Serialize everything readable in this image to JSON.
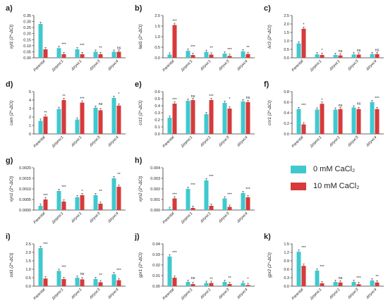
{
  "legend": [
    {
      "label": "0 mM CaCl₂",
      "color": "#3FC9CF"
    },
    {
      "label": "10 mM CaCl₂",
      "color": "#D63A3A"
    }
  ],
  "colors": {
    "control": "#3FC9CF",
    "treated": "#D63A3A"
  },
  "chart_data": [
    {
      "panel_label": "a)",
      "type": "bar",
      "ylabel": "xyl1 (2^-ΔCt)",
      "categories": [
        "Parental",
        "Δtrpmc1",
        "Δtryvc1",
        "Δtryvc3",
        "Δtryvc4"
      ],
      "ylim": [
        0,
        0.35
      ],
      "yticks": [
        "0.00",
        "0.05",
        "0.10",
        "0.15",
        "0.20",
        "0.25",
        "0.30",
        "0.35"
      ],
      "series": [
        {
          "name": "0 mM CaCl₂",
          "values": [
            0.28,
            0.08,
            0.07,
            0.05,
            0.05
          ]
        },
        {
          "name": "10 mM CaCl₂",
          "values": [
            0.07,
            0.03,
            0.03,
            0.03,
            0.05
          ]
        }
      ],
      "annotations": [
        "",
        "***",
        "***",
        "**",
        "ns"
      ]
    },
    {
      "panel_label": "b)",
      "type": "bar",
      "ylabel": "lad1 (2^-ΔCt)",
      "categories": [
        "Parental",
        "Δtrpmc1",
        "Δtryvc1",
        "Δtryvc3",
        "Δtryvc4"
      ],
      "ylim": [
        0,
        2.0
      ],
      "yticks": [
        "0.0",
        "0.5",
        "1.0",
        "1.5",
        "2.0"
      ],
      "series": [
        {
          "name": "0 mM CaCl₂",
          "values": [
            0.15,
            0.33,
            0.28,
            0.2,
            0.3
          ]
        },
        {
          "name": "10 mM CaCl₂",
          "values": [
            1.55,
            0.13,
            0.15,
            0.09,
            0.18
          ]
        }
      ],
      "annotations": [
        "***",
        "***",
        "**",
        "***",
        "**"
      ]
    },
    {
      "panel_label": "c)",
      "type": "bar",
      "ylabel": "lxr3 (2^-ΔCt)",
      "categories": [
        "Parental",
        "Δtrpmc1",
        "Δtryvc1",
        "Δtryvc3",
        "Δtryvc4"
      ],
      "ylim": [
        0,
        2.5
      ],
      "yticks": [
        "0.0",
        "0.5",
        "1.0",
        "1.5",
        "2.0",
        "2.5"
      ],
      "series": [
        {
          "name": "0 mM CaCl₂",
          "values": [
            0.85,
            0.2,
            0.17,
            0.2,
            0.22
          ]
        },
        {
          "name": "10 mM CaCl₂",
          "values": [
            1.72,
            0.17,
            0.14,
            0.19,
            0.22
          ]
        }
      ],
      "annotations": [
        "*",
        "*",
        "ns",
        "ns",
        "ns"
      ]
    },
    {
      "panel_label": "d)",
      "type": "bar",
      "ylabel": "cam (2^-ΔCt)",
      "categories": [
        "Parental",
        "Δtrpmc1",
        "Δtryvc1",
        "Δtryvc3",
        "Δtryvc4"
      ],
      "ylim": [
        0,
        5
      ],
      "yticks": [
        "0",
        "1",
        "2",
        "3",
        "4",
        "5"
      ],
      "series": [
        {
          "name": "0 mM CaCl₂",
          "values": [
            1.55,
            2.95,
            1.7,
            3.1,
            4.25
          ]
        },
        {
          "name": "10 mM CaCl₂",
          "values": [
            2.05,
            4.0,
            3.7,
            2.8,
            3.35
          ]
        }
      ],
      "annotations": [
        "**",
        "**",
        "***",
        "ns",
        "*"
      ]
    },
    {
      "panel_label": "e)",
      "type": "bar",
      "ylabel": "crz1 (2^-ΔCt)",
      "categories": [
        "Parental",
        "Δtrpmc1",
        "Δtryvc1",
        "Δtryvc3",
        "Δtryvc4"
      ],
      "ylim": [
        0,
        0.6
      ],
      "yticks": [
        "0.0",
        "0.1",
        "0.2",
        "0.3",
        "0.4",
        "0.5",
        "0.6"
      ],
      "series": [
        {
          "name": "0 mM CaCl₂",
          "values": [
            0.23,
            0.47,
            0.28,
            0.44,
            0.46
          ]
        },
        {
          "name": "10 mM CaCl₂",
          "values": [
            0.43,
            0.48,
            0.48,
            0.36,
            0.45
          ]
        }
      ],
      "annotations": [
        "***",
        "ns",
        "***",
        "*",
        "ns"
      ]
    },
    {
      "panel_label": "f)",
      "type": "bar",
      "ylabel": "cnr1 (2^-ΔCt)",
      "categories": [
        "Parental",
        "Δtrpmc1",
        "Δtryvc1",
        "Δtryvc3",
        "Δtryvc4"
      ],
      "ylim": [
        0,
        0.8
      ],
      "yticks": [
        "0.0",
        "0.2",
        "0.4",
        "0.6",
        "0.8"
      ],
      "series": [
        {
          "name": "0 mM CaCl₂",
          "values": [
            0.47,
            0.46,
            0.46,
            0.5,
            0.6
          ]
        },
        {
          "name": "10 mM CaCl₂",
          "values": [
            0.18,
            0.57,
            0.47,
            0.47,
            0.47
          ]
        }
      ],
      "annotations": [
        "***",
        "*",
        "ns",
        "ns",
        "***"
      ]
    },
    {
      "panel_label": "g)",
      "type": "bar",
      "ylabel": "xyn1 (2^-ΔCt)",
      "categories": [
        "Parental",
        "Δtrpmc1",
        "Δtryvc1",
        "Δtryvc3",
        "Δtryvc4"
      ],
      "ylim": [
        0,
        0.002
      ],
      "yticks": [
        "0.0000",
        "0.0005",
        "0.0010",
        "0.0015",
        "0.0020"
      ],
      "series": [
        {
          "name": "0 mM CaCl₂",
          "values": [
            0.0002,
            0.0009,
            0.0006,
            0.0007,
            0.0015
          ]
        },
        {
          "name": "10 mM CaCl₂",
          "values": [
            0.0005,
            0.0004,
            0.0007,
            0.0003,
            0.0011
          ]
        }
      ],
      "annotations": [
        "***",
        "***",
        "*",
        "**",
        "**"
      ]
    },
    {
      "panel_label": "h)",
      "type": "bar",
      "ylabel": "xyn2 (2^-ΔCt)",
      "categories": [
        "Parental",
        "Δtrpmc1",
        "Δtryvc1",
        "Δtryvc3",
        "Δtryvc4"
      ],
      "ylim": [
        0,
        0.004
      ],
      "yticks": [
        "0.000",
        "0.001",
        "0.002",
        "0.003",
        "0.004"
      ],
      "series": [
        {
          "name": "0 mM CaCl₂",
          "values": [
            0.0001,
            0.002,
            0.0028,
            0.0011,
            0.0016
          ]
        },
        {
          "name": "10 mM CaCl₂",
          "values": [
            0.0011,
            0.0002,
            0.0004,
            0.0003,
            0.0012
          ]
        }
      ],
      "annotations": [
        "***",
        "***",
        "***",
        "***",
        "***"
      ]
    },
    {
      "panel_label": "i)",
      "type": "bar",
      "ylabel": "sol1 (2^-ΔCt)",
      "categories": [
        "Parental",
        "Δtrpmc1",
        "Δtryvc1",
        "Δtryvc3",
        "Δtryvc4"
      ],
      "ylim": [
        0,
        2.5
      ],
      "yticks": [
        "0.0",
        "0.5",
        "1.0",
        "1.5",
        "2.0",
        "2.5"
      ],
      "series": [
        {
          "name": "0 mM CaCl₂",
          "values": [
            2.25,
            0.9,
            0.5,
            0.42,
            0.7
          ]
        },
        {
          "name": "10 mM CaCl₂",
          "values": [
            0.45,
            0.42,
            0.4,
            0.23,
            0.35
          ]
        }
      ],
      "annotations": [
        "***",
        "***",
        "ns",
        "**",
        "***"
      ]
    },
    {
      "panel_label": "j)",
      "type": "bar",
      "ylabel": "gpr1 (2^-ΔCt)",
      "categories": [
        "Parental",
        "Δtrpmc1",
        "Δtryvc1",
        "Δtryvc3",
        "Δtryvc4"
      ],
      "ylim": [
        0,
        0.04
      ],
      "yticks": [
        "0.00",
        "0.01",
        "0.02",
        "0.03",
        "0.04"
      ],
      "series": [
        {
          "name": "0 mM CaCl₂",
          "values": [
            0.028,
            0.004,
            0.003,
            0.004,
            0.003
          ]
        },
        {
          "name": "10 mM CaCl₂",
          "values": [
            0.008,
            0.002,
            0.003,
            0.002,
            0.001
          ]
        }
      ],
      "annotations": [
        "***",
        "ns",
        "**",
        "**",
        "*"
      ]
    },
    {
      "panel_label": "k)",
      "type": "bar",
      "ylabel": "gpr2 (2^-ΔCt)",
      "categories": [
        "Parental",
        "Δtrpmc1",
        "Δtryvc1",
        "Δtryvc3",
        "Δtryvc4"
      ],
      "ylim": [
        0,
        1.5
      ],
      "yticks": [
        "0.0",
        "0.3",
        "0.6",
        "0.9",
        "1.2",
        "1.5"
      ],
      "series": [
        {
          "name": "0 mM CaCl₂",
          "values": [
            1.22,
            0.55,
            0.15,
            0.15,
            0.2
          ]
        },
        {
          "name": "10 mM CaCl₂",
          "values": [
            0.72,
            0.1,
            0.13,
            0.07,
            0.13
          ]
        }
      ],
      "annotations": [
        "***",
        "***",
        "ns",
        "***",
        "**"
      ]
    }
  ]
}
